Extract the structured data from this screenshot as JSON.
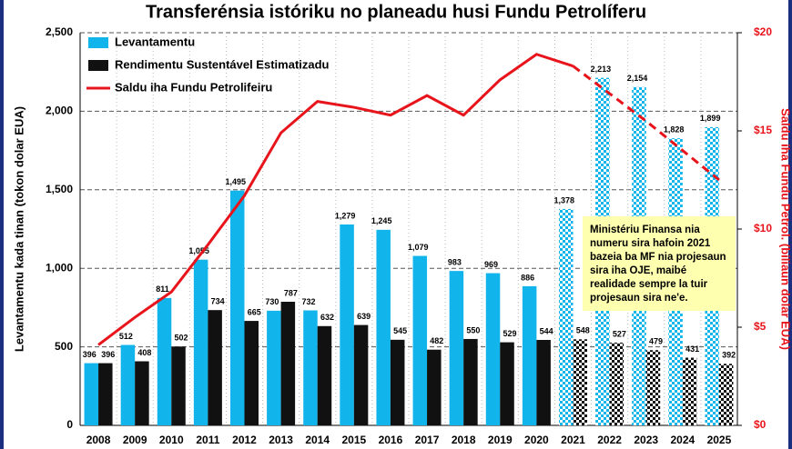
{
  "chart_data": {
    "type": "bar_line",
    "title": "Transferénsia istóriku no planeadu husi Fundu Petrolíferu",
    "y_label": "Levantamentu kada tinan (tokon dolar EUA)",
    "y2_label": "Saldu iha Fundu Petrol. (biliaun dolar EUA)",
    "annotation": "Ministériu Finansa nia numeru sira hafoin 2021 bazeia ba MF nia projesaun sira iha OJE, maibé realidade sempre la tuir projesaun sira ne'e.",
    "categories": [
      "2008",
      "2009",
      "2010",
      "2011",
      "2012",
      "2013",
      "2014",
      "2015",
      "2016",
      "2017",
      "2018",
      "2019",
      "2020",
      "2021",
      "2022",
      "2023",
      "2024",
      "2025"
    ],
    "projected_from": "2021",
    "legend": "upper left",
    "grid": true,
    "ylim": [
      0,
      2500
    ],
    "yticks": [
      0,
      500,
      {
        "value": 1000,
        "label": "1,000"
      },
      {
        "value": 1500,
        "label": "1,500"
      },
      {
        "value": 2000,
        "label": "2,000"
      },
      {
        "value": 2500,
        "label": "2,500"
      }
    ],
    "y2lim": [
      0,
      20
    ],
    "y2ticks": [
      {
        "value": 0,
        "label": "$0"
      },
      {
        "value": 5,
        "label": "$5"
      },
      {
        "value": 10,
        "label": "$10"
      },
      {
        "value": 15,
        "label": "$15"
      },
      {
        "value": 20,
        "label": "$20"
      }
    ],
    "series": [
      {
        "name": "Levantamentu",
        "kind": "bar",
        "color": "#12b4ec",
        "values": [
          396,
          512,
          811,
          1055,
          1495,
          730,
          732,
          1279,
          1245,
          1079,
          983,
          969,
          886,
          1378,
          2213,
          2154,
          1828,
          1899
        ],
        "value_labels": [
          "396",
          "512",
          "811",
          "1,055",
          "1,495",
          "730",
          "732",
          "1,279",
          "1,245",
          "1,079",
          "983",
          "969",
          "886",
          "1,378",
          "2,213",
          "2,154",
          "1,828",
          "1,899"
        ]
      },
      {
        "name": "Rendimentu Sustentável Estimatizadu",
        "kind": "bar",
        "color": "#111111",
        "values": [
          396,
          408,
          502,
          734,
          665,
          787,
          632,
          639,
          545,
          482,
          550,
          529,
          544,
          548,
          527,
          479,
          431,
          392
        ],
        "value_labels": [
          "396",
          "408",
          "502",
          "734",
          "665",
          "787",
          "632",
          "639",
          "545",
          "482",
          "550",
          "529",
          "544",
          "548",
          "527",
          "479",
          "431",
          "392"
        ]
      },
      {
        "name": "Saldu iha Fundu Petrolifeiru",
        "kind": "line",
        "axis": "y2",
        "color": "#e8141b",
        "values": [
          4.1,
          5.5,
          6.8,
          9.2,
          11.7,
          14.9,
          16.5,
          16.2,
          15.8,
          16.8,
          15.8,
          17.6,
          18.9,
          18.3,
          16.9,
          15.5,
          14.0,
          12.5
        ]
      }
    ]
  }
}
